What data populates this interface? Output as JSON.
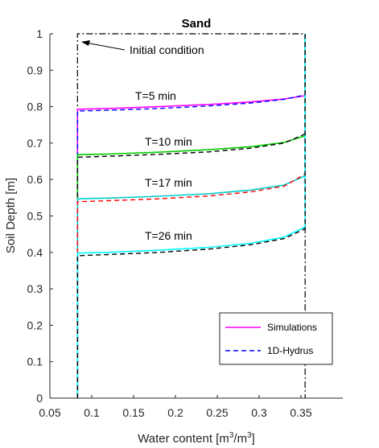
{
  "chart_data": {
    "type": "line",
    "title": "Sand",
    "xlabel": "Water content [m",
    "xlabel_sup1": "3",
    "xlabel_mid": "/m",
    "xlabel_sup2": "3",
    "xlabel_end": "]",
    "ylabel": "Soil Depth [m]",
    "xlim": [
      0.05,
      0.4
    ],
    "ylim": [
      0,
      1
    ],
    "xticks": [
      0.05,
      0.1,
      0.15,
      0.2,
      0.25,
      0.3,
      0.35
    ],
    "xtick_labels": [
      "0.05",
      "0.1",
      "0.15",
      "0.2",
      "0.25",
      "0.3",
      "0.35"
    ],
    "yticks": [
      0,
      0.1,
      0.2,
      0.3,
      0.4,
      0.5,
      0.6,
      0.7,
      0.8,
      0.9,
      1
    ],
    "ytick_labels": [
      "0",
      "0.1",
      "0.2",
      "0.3",
      "0.4",
      "0.5",
      "0.6",
      "0.7",
      "0.8",
      "0.9",
      "1"
    ],
    "grid": false,
    "legend": {
      "placement": "bottom-right",
      "entries": [
        {
          "label": "Simulations",
          "color": "#ff00ff",
          "style": "solid"
        },
        {
          "label": "1D-Hydrus",
          "color": "#0000ff",
          "style": "dashed"
        }
      ]
    },
    "initial_condition": {
      "label": "Initial condition",
      "color": "#000000",
      "style": "dashdot",
      "x": [
        0.083,
        0.083,
        0.355,
        0.355
      ],
      "y": [
        0,
        1,
        1,
        0
      ]
    },
    "profiles": [
      {
        "time_label": "T=5 min",
        "sim_color": "#ff00ff",
        "hyd_color": "#0000ff",
        "sim": {
          "x": [
            0.083,
            0.083,
            0.12,
            0.18,
            0.24,
            0.29,
            0.33,
            0.355,
            0.355
          ],
          "y": [
            0,
            0.793,
            0.795,
            0.8,
            0.806,
            0.813,
            0.821,
            0.83,
            1
          ]
        },
        "hyd": {
          "x": [
            0.083,
            0.083,
            0.12,
            0.18,
            0.24,
            0.29,
            0.33,
            0.355,
            0.355
          ],
          "y": [
            0,
            0.788,
            0.79,
            0.795,
            0.802,
            0.81,
            0.82,
            0.832,
            1
          ]
        }
      },
      {
        "time_label": "T=10 min",
        "sim_color": "#00cc00",
        "hyd_color": "#000000",
        "sim": {
          "x": [
            0.083,
            0.083,
            0.12,
            0.18,
            0.24,
            0.29,
            0.33,
            0.355,
            0.355
          ],
          "y": [
            0,
            0.668,
            0.67,
            0.675,
            0.682,
            0.69,
            0.702,
            0.72,
            1
          ]
        },
        "hyd": {
          "x": [
            0.083,
            0.083,
            0.12,
            0.18,
            0.24,
            0.29,
            0.33,
            0.355,
            0.355
          ],
          "y": [
            0,
            0.661,
            0.664,
            0.669,
            0.676,
            0.686,
            0.7,
            0.725,
            1
          ]
        }
      },
      {
        "time_label": "T=17 min",
        "sim_color": "#00cccc",
        "hyd_color": "#ff0000",
        "sim": {
          "x": [
            0.083,
            0.083,
            0.12,
            0.18,
            0.24,
            0.29,
            0.33,
            0.355,
            0.355
          ],
          "y": [
            0,
            0.547,
            0.549,
            0.554,
            0.561,
            0.571,
            0.585,
            0.61,
            1
          ]
        },
        "hyd": {
          "x": [
            0.083,
            0.083,
            0.12,
            0.18,
            0.24,
            0.29,
            0.33,
            0.355,
            0.355
          ],
          "y": [
            0,
            0.539,
            0.542,
            0.547,
            0.555,
            0.566,
            0.582,
            0.615,
            1
          ]
        }
      },
      {
        "time_label": "T=26 min",
        "sim_color": "#00ffff",
        "hyd_color": "#000000",
        "sim": {
          "x": [
            0.083,
            0.083,
            0.12,
            0.18,
            0.24,
            0.29,
            0.33,
            0.355,
            0.355
          ],
          "y": [
            0,
            0.398,
            0.4,
            0.406,
            0.414,
            0.425,
            0.442,
            0.47,
            1
          ]
        },
        "hyd": {
          "x": [
            0.083,
            0.083,
            0.12,
            0.18,
            0.24,
            0.29,
            0.33,
            0.355,
            0.355
          ],
          "y": [
            0,
            0.391,
            0.394,
            0.4,
            0.409,
            0.421,
            0.438,
            0.465,
            1
          ]
        }
      }
    ]
  }
}
